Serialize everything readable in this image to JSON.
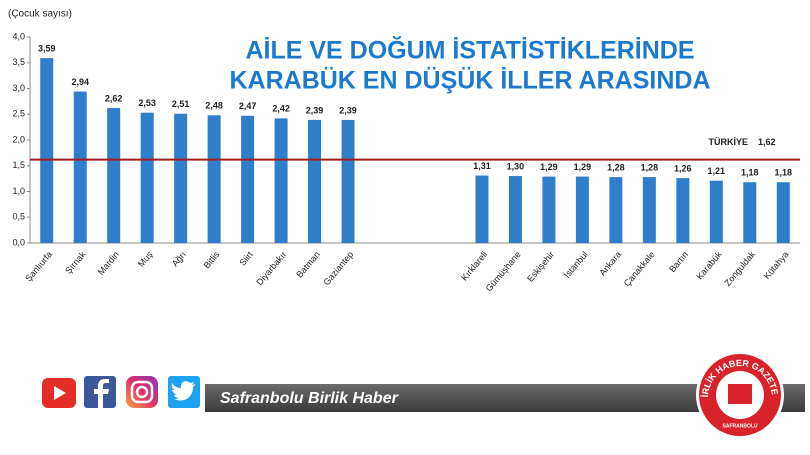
{
  "chart_data": {
    "type": "bar",
    "title": [
      "AİLE VE DOĞUM İSTATİSTİKLERİNDE",
      "KARABÜK EN DÜŞÜK İLLER ARASINDA"
    ],
    "y_label": "(Çocuk sayısı)",
    "categories": [
      "Şanlıurfa",
      "Şırnak",
      "Mardin",
      "Muş",
      "Ağrı",
      "Bitlis",
      "Siirt",
      "Diyarbakır",
      "Batman",
      "Gaziantep",
      null,
      null,
      null,
      "Kırklareli",
      "Gümüşhane",
      "Eskişehir",
      "İstanbul",
      "Ankara",
      "Çanakkale",
      "Bartın",
      "Karabük",
      "Zonguldak",
      "Kütahya"
    ],
    "values": [
      3.59,
      2.94,
      2.62,
      2.53,
      2.51,
      2.48,
      2.47,
      2.42,
      2.39,
      2.39,
      null,
      null,
      null,
      1.31,
      1.3,
      1.29,
      1.29,
      1.28,
      1.28,
      1.26,
      1.21,
      1.18,
      1.18
    ],
    "value_labels": [
      "3,59",
      "2,94",
      "2,62",
      "2,53",
      "2,51",
      "2,48",
      "2,47",
      "2,42",
      "2,39",
      "2,39",
      null,
      null,
      null,
      "1,31",
      "1,30",
      "1,29",
      "1,29",
      "1,28",
      "1,28",
      "1,26",
      "1,21",
      "1,18",
      "1,18"
    ],
    "color": "#2f7ecb",
    "ylim": [
      0,
      4
    ],
    "yticks": [
      {
        "value": 0,
        "label": "0,0"
      },
      {
        "value": 0.5,
        "label": "0,5"
      },
      {
        "value": 1,
        "label": "1,0"
      },
      {
        "value": 1.5,
        "label": "1,5"
      },
      {
        "value": 2,
        "label": "2,0"
      },
      {
        "value": 2.5,
        "label": "2,5"
      },
      {
        "value": 3,
        "label": "3,0"
      },
      {
        "value": 3.5,
        "label": "3,5"
      },
      {
        "value": 4,
        "label": "4,0"
      }
    ],
    "reference_line": {
      "name": "TÜRKİYE",
      "value": 1.62,
      "label": "1,62",
      "color": "#a31d1d"
    }
  },
  "footer": {
    "site": "Safranbolu Birlik Haber",
    "logo_text": "BİRLİK HABER GAZETESİ",
    "logo_city": "SAFRANBOLU"
  }
}
